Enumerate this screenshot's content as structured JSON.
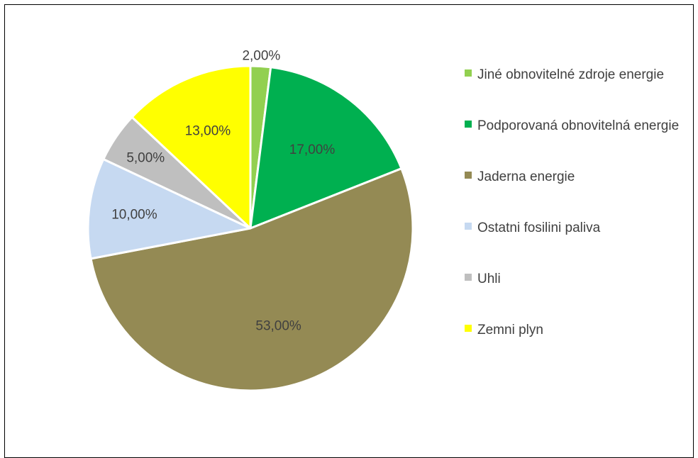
{
  "chart_data": {
    "type": "pie",
    "slices": [
      {
        "label": "Jiné obnovitelné zdroje energie",
        "value": 2.0,
        "display": "2,00%",
        "color": "#92D050"
      },
      {
        "label": "Podporovaná obnovitelná energie",
        "value": 17.0,
        "display": "17,00%",
        "color": "#00B050"
      },
      {
        "label": "Jaderna energie",
        "value": 53.0,
        "display": "53,00%",
        "color": "#948A54"
      },
      {
        "label": "Ostatni fosilini paliva",
        "value": 10.0,
        "display": "10,00%",
        "color": "#C6D9F1"
      },
      {
        "label": "Uhli",
        "value": 5.0,
        "display": "5,00%",
        "color": "#BFBFBF"
      },
      {
        "label": "Zemni plyn",
        "value": 13.0,
        "display": "13,00%",
        "color": "#FFFF00"
      }
    ],
    "legend_position": "right"
  }
}
